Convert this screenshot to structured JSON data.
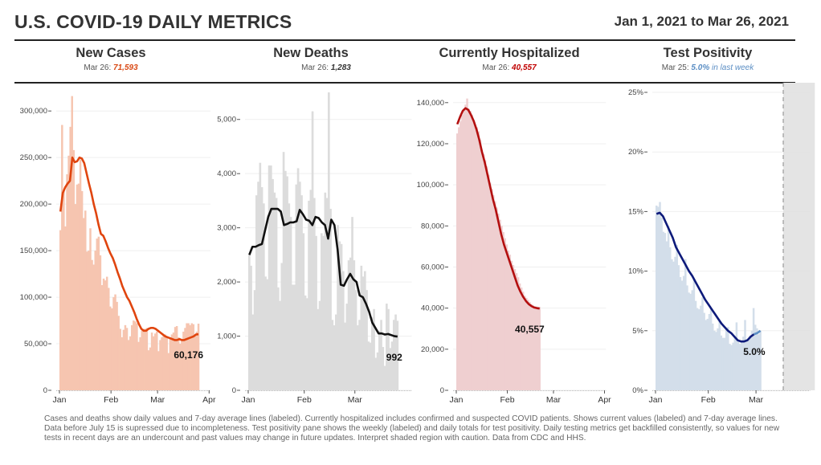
{
  "header": {
    "title": "U.S. COVID-19 DAILY METRICS",
    "date_range": "Jan 1, 2021 to Mar 26, 2021"
  },
  "panels": [
    {
      "title": "New Cases",
      "sub_prefix": "Mar 26: ",
      "sub_value": "71,593",
      "sub_suffix": "",
      "value_color": "#d94a16"
    },
    {
      "title": "New Deaths",
      "sub_prefix": "Mar 26: ",
      "sub_value": "1,283",
      "sub_suffix": "",
      "value_color": "#333333"
    },
    {
      "title": "Currently Hospitalized",
      "sub_prefix": "Mar 26: ",
      "sub_value": "40,557",
      "sub_suffix": "",
      "value_color": "#c00000"
    },
    {
      "title": "Test Positivity",
      "sub_prefix": "Mar 25: ",
      "sub_value": "5.0%",
      "sub_suffix": " in last week",
      "value_color": "#5b8ec4"
    }
  ],
  "footnote": "Cases and deaths show daily values and 7-day average lines (labeled). Currently hospitalized includes confirmed and suspected COVID patients. Shows current values (labeled) and 7-day average lines. Data before July 15 is supressed due to incompleteness. Test positivity pane shows the weekly (labeled) and daily totals for test positivity. Daily testing metrics get backfilled consistently, so values for new tests in recent days are an undercount and past values may change in future updates. Interpret shaded region with caution. Data from CDC and HHS.",
  "chart_data": [
    {
      "type": "bar",
      "title": "New Cases",
      "x_start": "2021-01-01",
      "x_end": "2021-03-26",
      "x_ticks": [
        "Jan",
        "Feb",
        "Mar",
        "Apr"
      ],
      "y_ticks": [
        "0",
        "50,000",
        "100,000",
        "150,000",
        "200,000",
        "250,000",
        "300,000"
      ],
      "ylim": [
        0,
        320000
      ],
      "bar_color": "#f6c5b0",
      "line_color": "#e0450f",
      "end_label": "60,176",
      "daily": [
        172000,
        285000,
        215000,
        176000,
        232000,
        252000,
        283000,
        316000,
        258000,
        200000,
        221000,
        222000,
        248000,
        214000,
        185000,
        193000,
        149000,
        150000,
        174000,
        140000,
        135000,
        150000,
        163000,
        165000,
        145000,
        113000,
        120000,
        118000,
        122000,
        110000,
        90000,
        88000,
        100000,
        103000,
        95000,
        80000,
        66000,
        57000,
        65000,
        70000,
        67000,
        54000,
        58000,
        70000,
        75000,
        74000,
        72000,
        52000,
        57000,
        64000,
        66000,
        66000,
        67000,
        43000,
        46000,
        62000,
        58000,
        61000,
        63000,
        42000,
        54000,
        57000,
        59000,
        60000,
        58000,
        40000,
        56000,
        60000,
        62000,
        68000,
        69000,
        57000,
        50000,
        55000,
        63000,
        67000,
        72000,
        72000,
        70000,
        72000,
        71000,
        60000,
        63000,
        71593
      ],
      "avg7": [
        192000,
        212000,
        218000,
        222000,
        225000,
        250000,
        245000,
        246000,
        250000,
        249000,
        244000,
        233000,
        222000,
        212000,
        200000,
        190000,
        178000,
        168000,
        166000,
        160000,
        153000,
        147000,
        142000,
        135000,
        127000,
        120000,
        112000,
        106000,
        100000,
        96000,
        90000,
        84000,
        77000,
        71000,
        66000,
        64000,
        64000,
        66000,
        67000,
        67000,
        66000,
        64000,
        62000,
        60000,
        58000,
        57000,
        56000,
        55000,
        54000,
        54000,
        55000,
        54000,
        54000,
        55000,
        56000,
        57000,
        58000,
        60000,
        60176
      ]
    },
    {
      "type": "bar",
      "title": "New Deaths",
      "x_start": "2021-01-01",
      "x_end": "2021-03-26",
      "x_ticks": [
        "Jan",
        "Feb",
        "Mar"
      ],
      "y_ticks": [
        "0",
        "1,000",
        "2,000",
        "3,000",
        "4,000",
        "5,000"
      ],
      "ylim": [
        0,
        5500
      ],
      "bar_color": "#dcdcdc",
      "line_color": "#111111",
      "end_label": "992",
      "daily": [
        2500,
        2300,
        1400,
        1850,
        3600,
        3850,
        4200,
        3750,
        3450,
        2100,
        2050,
        4150,
        4150,
        3900,
        3650,
        3550,
        1900,
        1650,
        2350,
        4400,
        4050,
        3950,
        3450,
        3200,
        1950,
        1950,
        3800,
        4100,
        3850,
        3600,
        2900,
        1750,
        1700,
        3500,
        3700,
        5150,
        3550,
        2850,
        1500,
        1650,
        2900,
        2850,
        3650,
        3550,
        5500,
        3350,
        1300,
        1200,
        1400,
        3050,
        2750,
        2700,
        2200,
        1250,
        1600,
        2400,
        2450,
        3200,
        2400,
        1850,
        1200,
        1300,
        2300,
        2100,
        2200,
        1850,
        900,
        880,
        1350,
        1500,
        600,
        700,
        1100,
        1300,
        800,
        450,
        1600,
        1500,
        780,
        900,
        1300,
        1400,
        1283
      ],
      "avg7": [
        2500,
        2650,
        2650,
        2680,
        2700,
        2950,
        3200,
        3350,
        3350,
        3350,
        3300,
        3050,
        3070,
        3100,
        3100,
        3120,
        3330,
        3250,
        3150,
        3130,
        3050,
        3200,
        3180,
        3100,
        3050,
        2800,
        3150,
        3050,
        2600,
        1950,
        1930,
        2050,
        2150,
        2050,
        2000,
        1750,
        1720,
        1600,
        1450,
        1250,
        1150,
        1050,
        1050,
        1030,
        1040,
        1020,
        1000,
        992
      ]
    },
    {
      "type": "area",
      "title": "Currently Hospitalized",
      "x_start": "2021-01-01",
      "x_end": "2021-03-26",
      "x_ticks": [
        "Jan",
        "Feb",
        "Mar",
        "Apr"
      ],
      "y_ticks": [
        "0",
        "20,000",
        "40,000",
        "60,000",
        "80,000",
        "100,000",
        "120,000",
        "140,000"
      ],
      "ylim": [
        0,
        145000
      ],
      "bar_color": "#efcfd0",
      "line_color": "#b30f0f",
      "end_label": "40,557",
      "daily": [
        125000,
        128000,
        131000,
        134000,
        137000,
        139000,
        142000,
        137000,
        136000,
        134000,
        131000,
        129000,
        128000,
        126000,
        122000,
        117000,
        115000,
        112000,
        109000,
        105000,
        101000,
        98000,
        95000,
        92000,
        89000,
        86000,
        83000,
        80000,
        77000,
        74000,
        71000,
        68000,
        66000,
        63000,
        61000,
        59000,
        57000,
        55000,
        52000,
        50000,
        48000,
        46000,
        45000,
        44000,
        43000,
        42000,
        41500,
        41000,
        40800,
        40600,
        40557
      ],
      "avg7": [
        129500,
        133000,
        136000,
        137300,
        136500,
        134000,
        131000,
        127000,
        122000,
        116000,
        111000,
        105000,
        99000,
        93000,
        88000,
        82000,
        76000,
        71000,
        67000,
        63000,
        59000,
        55000,
        51000,
        48000,
        45500,
        43500,
        42000,
        41000,
        40300,
        40000,
        39800
      ]
    },
    {
      "type": "bar",
      "title": "Test Positivity",
      "x_start": "2021-01-01",
      "x_end": "2021-03-25",
      "x_ticks": [
        "Jan",
        "Feb",
        "Mar"
      ],
      "y_ticks": [
        "0%",
        "5%",
        "10%",
        "15%",
        "20%",
        "25%"
      ],
      "ylim": [
        0,
        25
      ],
      "bar_color": "#d3deea",
      "line_color": "#0d1a7a",
      "line_color_recent": "#5b8ec4",
      "shaded_region_start": "2021-03-17",
      "end_label": "5.0%",
      "daily": [
        15.5,
        15.4,
        15.8,
        14.5,
        13.3,
        13.2,
        12.5,
        13.8,
        12.0,
        11.0,
        10.8,
        11.2,
        12.2,
        10.5,
        9.5,
        9.2,
        9.6,
        11.0,
        8.8,
        8.2,
        8.1,
        8.4,
        9.4,
        7.5,
        6.9,
        6.8,
        7.1,
        7.8,
        6.5,
        5.9,
        6.0,
        6.4,
        6.9,
        5.6,
        5.0,
        4.9,
        5.2,
        5.8,
        4.6,
        4.4,
        4.4,
        5.1,
        5.3,
        3.9,
        3.8,
        4.0,
        4.5,
        5.7,
        4.2,
        3.9,
        4.1,
        4.5,
        5.9,
        4.3,
        4.2,
        4.6,
        5.0,
        6.9,
        5.5,
        5.2,
        4.7,
        5.0
      ],
      "avg7": [
        14.8,
        14.9,
        14.6,
        14.0,
        13.4,
        12.8,
        12.0,
        11.5,
        11.0,
        10.5,
        10.0,
        9.6,
        9.1,
        8.6,
        8.1,
        7.6,
        7.2,
        6.8,
        6.4,
        6.0,
        5.6,
        5.3,
        5.0,
        4.8,
        4.5,
        4.2,
        4.1,
        4.1,
        4.2,
        4.5,
        4.7,
        4.8,
        5.0
      ]
    }
  ]
}
